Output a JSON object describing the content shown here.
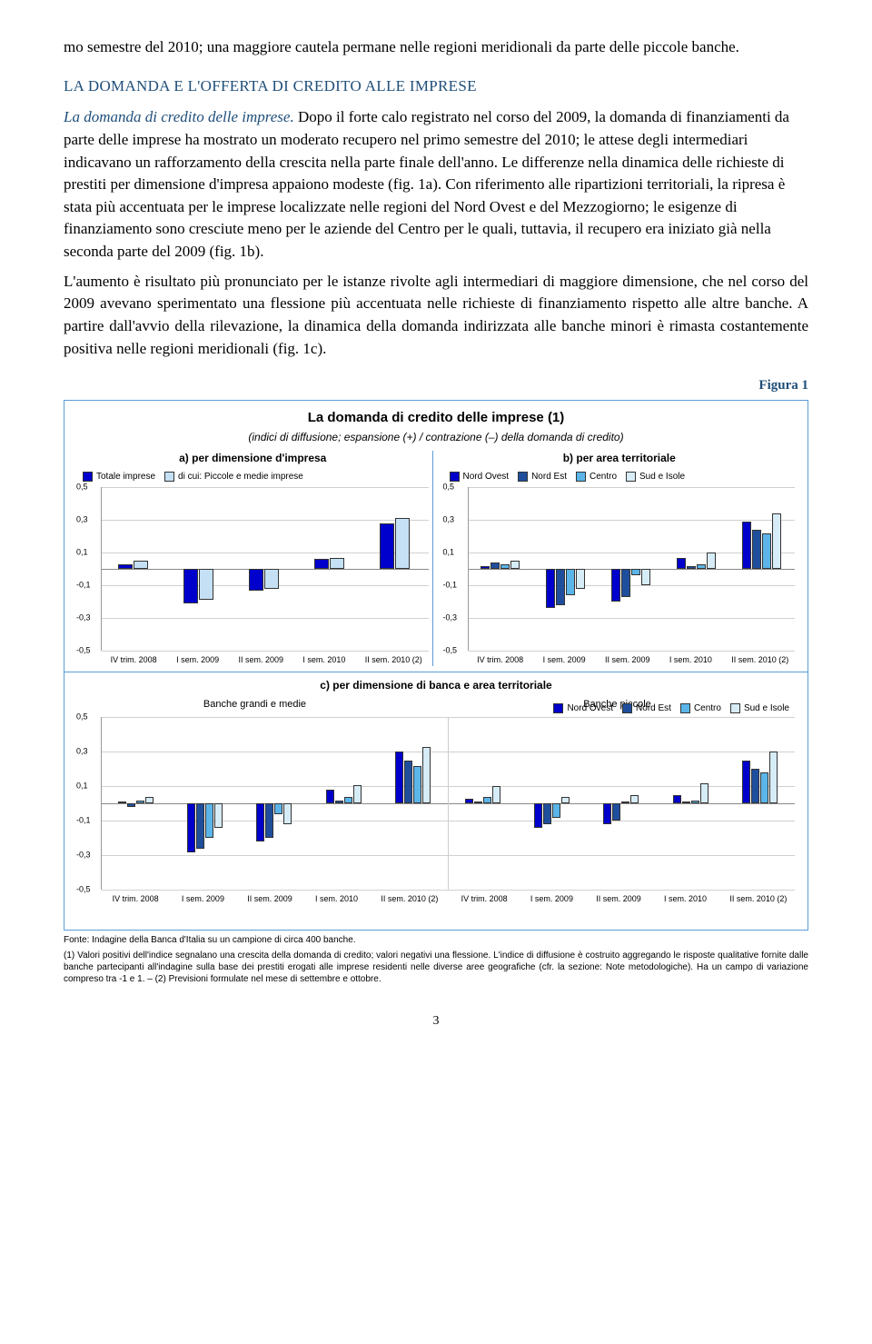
{
  "paragraphs": {
    "p0": "mo semestre del 2010; una maggiore cautela permane nelle regioni meridionali da parte delle piccole banche.",
    "p1": "LA DOMANDA E L'OFFERTA DI CREDITO ALLE IMPRESE",
    "p2": "La domanda di credito delle imprese.",
    "p3": "Dopo il forte calo registrato nel corso del 2009, la domanda di finanziamenti da parte delle imprese ha mostrato un moderato recupero nel primo semestre del 2010; le attese degli intermediari indicavano un rafforzamento della crescita nella parte finale dell'anno. Le differenze nella dinamica delle richieste di prestiti per dimensione d'impresa appaiono modeste (fig. 1a). Con riferimento alle ripartizioni territoriali, la ripresa è stata più accentuata per le imprese localizzate nelle regioni del Nord Ovest e del Mezzogiorno; le esigenze di finanziamento sono cresciute meno per le aziende del Centro per le quali, tuttavia, il recupero era iniziato già nella seconda parte del 2009 (fig. 1b).",
    "p4": "L'aumento è risultato più pronunciato per le istanze rivolte agli intermediari di maggiore dimensione, che nel corso del 2009 avevano sperimentato una flessione più accentuata nelle richieste di finanziamento rispetto alle altre banche. A partire dall'avvio della rilevazione, la dinamica della domanda indirizzata alle banche minori è rimasta costantemente positiva nelle regioni meridionali (fig. 1c)."
  },
  "figure": {
    "label": "Figura 1",
    "title": "La domanda di credito delle imprese (1)",
    "subtitle": "(indici di diffusione; espansione (+) / contrazione (–) della domanda di credito)",
    "yticks": [
      -0.5,
      -0.3,
      -0.1,
      0.1,
      0.3,
      0.5
    ],
    "ylim": [
      -0.5,
      0.5
    ],
    "xlabels": [
      "IV trim. 2008",
      "I sem. 2009",
      "II sem. 2009",
      "I sem. 2010",
      "II sem. 2010 (2)"
    ],
    "colors": {
      "totale": "#0000cc",
      "piccole": "#c5e0f5",
      "nord_ovest": "#0000cc",
      "nord_est": "#1f4e9c",
      "centro": "#5bb5e8",
      "sud": "#d6ecf7",
      "grid": "#d0d0d0"
    },
    "panelA": {
      "header": "a) per dimensione d'impresa",
      "legend": [
        {
          "label": "Totale imprese",
          "colorKey": "totale"
        },
        {
          "label": "di cui: Piccole e medie imprese",
          "colorKey": "piccole"
        }
      ],
      "series": [
        {
          "colorKey": "totale",
          "values": [
            0.03,
            -0.21,
            -0.13,
            0.06,
            0.28
          ]
        },
        {
          "colorKey": "piccole",
          "values": [
            0.05,
            -0.19,
            -0.12,
            0.07,
            0.31
          ]
        }
      ]
    },
    "panelB": {
      "header": "b) per area territoriale",
      "legend": [
        {
          "label": "Nord Ovest",
          "colorKey": "nord_ovest"
        },
        {
          "label": "Nord Est",
          "colorKey": "nord_est"
        },
        {
          "label": "Centro",
          "colorKey": "centro"
        },
        {
          "label": "Sud e Isole",
          "colorKey": "sud"
        }
      ],
      "series": [
        {
          "colorKey": "nord_ovest",
          "values": [
            0.02,
            -0.24,
            -0.2,
            0.07,
            0.29
          ]
        },
        {
          "colorKey": "nord_est",
          "values": [
            0.04,
            -0.22,
            -0.17,
            0.02,
            0.24
          ]
        },
        {
          "colorKey": "centro",
          "values": [
            0.03,
            -0.16,
            -0.04,
            0.03,
            0.22
          ]
        },
        {
          "colorKey": "sud",
          "values": [
            0.05,
            -0.12,
            -0.1,
            0.1,
            0.34
          ]
        }
      ]
    },
    "panelC": {
      "header": "c) per dimensione di banca e area territoriale",
      "sub_left": "Banche grandi e medie",
      "sub_right": "Banche piccole",
      "legend": [
        {
          "label": "Nord Ovest",
          "colorKey": "nord_ovest"
        },
        {
          "label": "Nord Est",
          "colorKey": "nord_est"
        },
        {
          "label": "Centro",
          "colorKey": "centro"
        },
        {
          "label": "Sud e Isole",
          "colorKey": "sud"
        }
      ],
      "left_series": [
        {
          "colorKey": "nord_ovest",
          "values": [
            0.01,
            -0.28,
            -0.22,
            0.08,
            0.3
          ]
        },
        {
          "colorKey": "nord_est",
          "values": [
            -0.02,
            -0.26,
            -0.2,
            0.02,
            0.25
          ]
        },
        {
          "colorKey": "centro",
          "values": [
            0.02,
            -0.2,
            -0.06,
            0.04,
            0.22
          ]
        },
        {
          "colorKey": "sud",
          "values": [
            0.04,
            -0.14,
            -0.12,
            0.11,
            0.33
          ]
        }
      ],
      "right_series": [
        {
          "colorKey": "nord_ovest",
          "values": [
            0.03,
            -0.14,
            -0.12,
            0.05,
            0.25
          ]
        },
        {
          "colorKey": "nord_est",
          "values": [
            0.01,
            -0.12,
            -0.1,
            0.01,
            0.2
          ]
        },
        {
          "colorKey": "centro",
          "values": [
            0.04,
            -0.08,
            0.0,
            0.02,
            0.18
          ]
        },
        {
          "colorKey": "sud",
          "values": [
            0.1,
            0.04,
            0.05,
            0.12,
            0.3
          ]
        }
      ]
    }
  },
  "footnote": {
    "source": "Fonte: Indagine della Banca d'Italia su un campione di circa 400 banche.",
    "note": "(1) Valori positivi dell'indice segnalano una crescita della domanda di credito; valori negativi una flessione. L'indice di diffusione è costruito aggregando le risposte qualitative fornite dalle banche partecipanti all'indagine sulla base dei prestiti erogati alle imprese residenti nelle diverse aree geografiche (cfr. la sezione: Note metodologiche). Ha un campo di variazione compreso tra -1 e 1. – (2) Previsioni formulate nel mese di settembre e ottobre."
  },
  "pagenum": "3"
}
